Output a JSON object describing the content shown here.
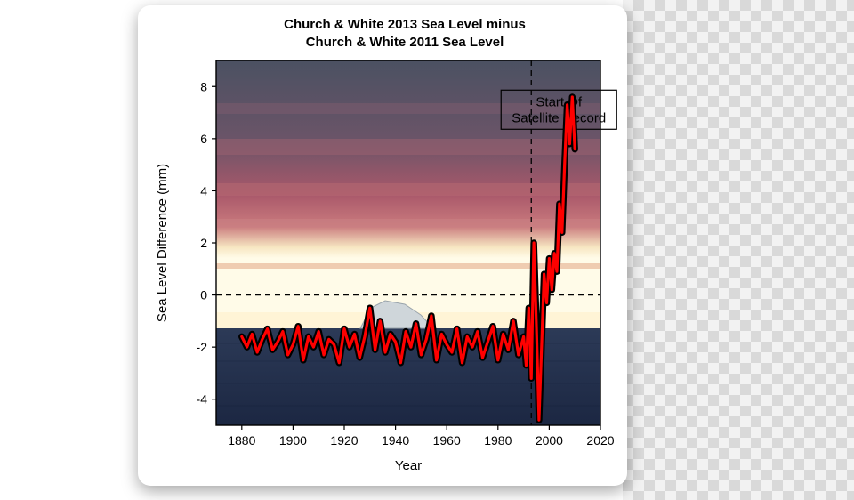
{
  "chart": {
    "type": "line",
    "title_line1": "Church & White 2013 Sea Level minus",
    "title_line2": "Church & White 2011 Sea Level",
    "title_fontsize": 15,
    "title_fontweight": "bold",
    "xlabel": "Year",
    "ylabel": "Sea Level Difference (mm)",
    "label_fontsize": 15,
    "tick_fontsize": 14,
    "xlim": [
      1870,
      2020
    ],
    "ylim": [
      -5,
      9
    ],
    "xticks": [
      1880,
      1900,
      1920,
      1940,
      1960,
      1980,
      2000,
      2020
    ],
    "yticks": [
      -4,
      -2,
      0,
      2,
      4,
      6,
      8
    ],
    "zero_line_y": 0,
    "zero_line_dash": "6,5",
    "zero_line_color": "#000000",
    "satellite_marker_x": 1993,
    "satellite_marker_dash": "6,5",
    "satellite_marker_color": "#000000",
    "annotation_text_line1": "Start Of",
    "annotation_text_line2": "Satellite Record",
    "annotation_box_stroke": "#000000",
    "annotation_box_fill": "none",
    "line_color": "#ff0000",
    "line_outline_color": "#000000",
    "line_width": 3.2,
    "line_outline_width": 7.5,
    "axis_color": "#000000",
    "tick_length": 5,
    "background_sky_colors": [
      "#4b5162",
      "#6b5468",
      "#a9586a",
      "#c97a7d",
      "#f7e6c2",
      "#fffbe8"
    ],
    "background_sea_color_top": "#2c3a57",
    "background_sea_color_bottom": "#1a2540",
    "iceberg_color": "#cfd6da",
    "card_bg": "#ffffff",
    "plot_font_family": "Arial",
    "series": {
      "years": [
        1880,
        1882,
        1884,
        1886,
        1888,
        1890,
        1892,
        1894,
        1896,
        1898,
        1900,
        1902,
        1904,
        1906,
        1908,
        1910,
        1912,
        1914,
        1916,
        1918,
        1920,
        1922,
        1924,
        1926,
        1928,
        1930,
        1932,
        1934,
        1936,
        1938,
        1940,
        1942,
        1944,
        1946,
        1948,
        1950,
        1952,
        1954,
        1956,
        1958,
        1960,
        1962,
        1964,
        1966,
        1968,
        1970,
        1972,
        1974,
        1976,
        1978,
        1980,
        1982,
        1984,
        1986,
        1988,
        1990,
        1991,
        1992,
        1993,
        1994,
        1995,
        1996,
        1997,
        1998,
        1999,
        2000,
        2001,
        2002,
        2003,
        2004,
        2005,
        2006,
        2007,
        2008,
        2009,
        2010
      ],
      "values": [
        -1.6,
        -2.0,
        -1.5,
        -2.2,
        -1.7,
        -1.3,
        -2.1,
        -1.8,
        -1.4,
        -2.3,
        -1.9,
        -1.2,
        -2.5,
        -1.6,
        -2.0,
        -1.4,
        -2.3,
        -1.7,
        -1.9,
        -2.6,
        -1.3,
        -2.0,
        -1.5,
        -2.4,
        -1.6,
        -0.5,
        -2.1,
        -1.0,
        -2.2,
        -1.5,
        -1.8,
        -2.6,
        -1.4,
        -2.0,
        -1.1,
        -2.3,
        -1.7,
        -0.8,
        -2.5,
        -1.5,
        -1.9,
        -2.2,
        -1.3,
        -2.6,
        -1.6,
        -2.0,
        -1.4,
        -2.4,
        -1.8,
        -1.2,
        -2.5,
        -1.5,
        -2.1,
        -1.0,
        -2.3,
        -1.6,
        -2.7,
        -0.5,
        -3.2,
        2.0,
        -1.2,
        -4.8,
        -2.0,
        0.8,
        -0.3,
        1.4,
        0.2,
        1.6,
        0.9,
        3.5,
        2.4,
        5.0,
        7.3,
        5.8,
        7.6,
        5.6
      ]
    }
  }
}
